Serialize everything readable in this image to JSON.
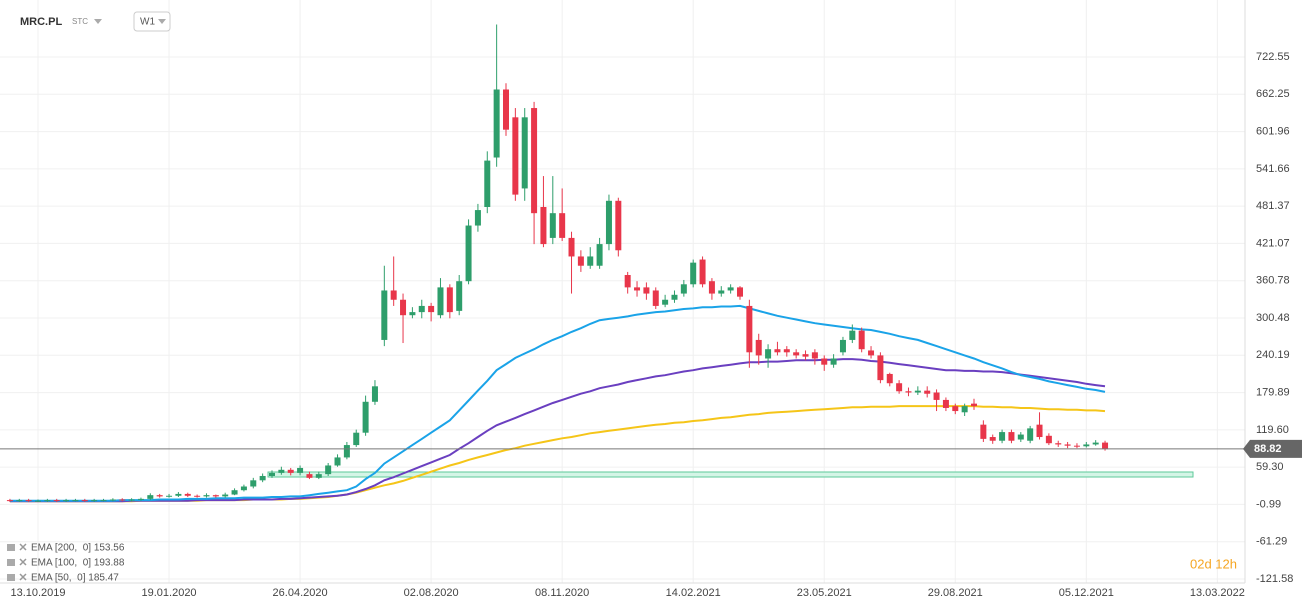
{
  "chart_data": {
    "type": "candlestick",
    "title": "MRC.PL",
    "subtitle": "STC",
    "interval": "W1",
    "countdown": "02d 12h",
    "last_price": 88.82,
    "last_price_label": "88.82",
    "up_color": "#2e9e6b",
    "down_color": "#e8364a",
    "grid": true,
    "ylim": [
      -128.05,
      814.72
    ],
    "yticks": [
      722.55,
      662.25,
      601.96,
      541.66,
      481.37,
      421.07,
      360.78,
      300.48,
      240.19,
      179.89,
      {
        "value": 119.6,
        "label": "119.60"
      },
      {
        "value": 59.3,
        "label": "59.30"
      },
      -0.99,
      -61.29,
      -121.58
    ],
    "categories": [
      null,
      null,
      null,
      "13.10.2019",
      null,
      null,
      null,
      null,
      null,
      null,
      null,
      null,
      null,
      null,
      null,
      null,
      null,
      "19.01.2020",
      null,
      null,
      null,
      null,
      null,
      null,
      null,
      null,
      null,
      null,
      null,
      null,
      null,
      "26.04.2020",
      null,
      null,
      null,
      null,
      null,
      null,
      null,
      null,
      null,
      null,
      null,
      null,
      null,
      "02.08.2020",
      null,
      null,
      null,
      null,
      null,
      null,
      null,
      null,
      null,
      null,
      null,
      null,
      null,
      "08.11.2020",
      null,
      null,
      null,
      null,
      null,
      null,
      null,
      null,
      null,
      null,
      null,
      null,
      null,
      "14.02.2021",
      null,
      null,
      null,
      null,
      null,
      null,
      null,
      null,
      null,
      null,
      null,
      null,
      null,
      "23.05.2021",
      null,
      null,
      null,
      null,
      null,
      null,
      null,
      null,
      null,
      null,
      null,
      null,
      null,
      "29.08.2021",
      null,
      null,
      null,
      null,
      null,
      null,
      null,
      null,
      null,
      null,
      null,
      null,
      null,
      "05.12.2021",
      null,
      null,
      null,
      null,
      null,
      null,
      null,
      null,
      null,
      null,
      null,
      null,
      null,
      "13.03.2022"
    ],
    "open": [
      6,
      5,
      6,
      5,
      5,
      6,
      5,
      6,
      6,
      5,
      6,
      6,
      7,
      6,
      7,
      8,
      14,
      12,
      13,
      16,
      13,
      12,
      14,
      12,
      15,
      22,
      28,
      38,
      45,
      50,
      55,
      50,
      48,
      42,
      48,
      62,
      75,
      95,
      115,
      165,
      265,
      345,
      330,
      305,
      310,
      320,
      305,
      350,
      312,
      360,
      450,
      480,
      560,
      670,
      625,
      510,
      640,
      480,
      430,
      470,
      430,
      400,
      385,
      385,
      420,
      490,
      370,
      350,
      350,
      345,
      322,
      330,
      340,
      355,
      395,
      360,
      340,
      345,
      350,
      320,
      265,
      235,
      250,
      250,
      245,
      242,
      245,
      235,
      225,
      245,
      265,
      280,
      248,
      240,
      210,
      195,
      182,
      180,
      183,
      180,
      168,
      158,
      148,
      162,
      128,
      108,
      102,
      116,
      104,
      102,
      128,
      110,
      98,
      96,
      94,
      93,
      96,
      99,
      null,
      null,
      null,
      null,
      null,
      null,
      null,
      null,
      null,
      null,
      null,
      null
    ],
    "high": [
      8,
      8,
      8,
      7,
      8,
      8,
      8,
      8,
      8,
      8,
      8,
      9,
      9,
      9,
      10,
      17,
      16,
      16,
      19,
      18,
      15,
      17,
      15,
      18,
      25,
      31,
      42,
      49,
      54,
      60,
      58,
      62,
      52,
      52,
      66,
      80,
      100,
      120,
      175,
      200,
      385,
      400,
      340,
      318,
      330,
      325,
      365,
      355,
      370,
      460,
      485,
      570,
      775,
      680,
      640,
      640,
      650,
      530,
      530,
      510,
      440,
      410,
      415,
      430,
      500,
      495,
      375,
      360,
      358,
      350,
      338,
      345,
      362,
      395,
      400,
      365,
      352,
      355,
      352,
      330,
      275,
      258,
      262,
      255,
      250,
      248,
      250,
      240,
      242,
      270,
      290,
      285,
      255,
      245,
      212,
      200,
      188,
      190,
      190,
      185,
      172,
      162,
      162,
      170,
      135,
      112,
      120,
      120,
      116,
      126,
      148,
      114,
      102,
      100,
      98,
      100,
      103,
      102,
      null,
      null,
      null,
      null,
      null,
      null,
      null,
      null,
      null,
      null,
      null,
      null
    ],
    "low": [
      3,
      3,
      3,
      3,
      3,
      3,
      3,
      4,
      3,
      3,
      4,
      4,
      4,
      4,
      5,
      6,
      10,
      10,
      11,
      11,
      10,
      10,
      10,
      10,
      14,
      20,
      25,
      35,
      42,
      47,
      46,
      46,
      40,
      40,
      45,
      60,
      72,
      92,
      110,
      160,
      255,
      320,
      260,
      300,
      300,
      295,
      300,
      300,
      305,
      355,
      440,
      470,
      545,
      595,
      490,
      490,
      420,
      415,
      420,
      425,
      340,
      375,
      380,
      380,
      410,
      400,
      340,
      335,
      330,
      315,
      318,
      325,
      335,
      350,
      350,
      330,
      335,
      340,
      330,
      220,
      225,
      220,
      240,
      238,
      235,
      232,
      225,
      215,
      220,
      240,
      260,
      245,
      235,
      195,
      190,
      178,
      174,
      176,
      172,
      150,
      150,
      145,
      142,
      152,
      100,
      97,
      98,
      98,
      100,
      98,
      104,
      95,
      92,
      90,
      90,
      91,
      94,
      86,
      null,
      null,
      null,
      null,
      null,
      null,
      null,
      null,
      null,
      null,
      null,
      null
    ],
    "close": [
      5,
      6,
      5,
      5,
      6,
      5,
      6,
      6,
      5,
      6,
      6,
      7,
      6,
      7,
      8,
      14,
      12,
      13,
      16,
      13,
      12,
      14,
      12,
      15,
      22,
      28,
      38,
      45,
      50,
      55,
      50,
      58,
      42,
      48,
      62,
      75,
      95,
      115,
      165,
      190,
      345,
      330,
      305,
      310,
      320,
      310,
      350,
      310,
      360,
      450,
      475,
      555,
      670,
      605,
      500,
      625,
      470,
      420,
      470,
      430,
      400,
      385,
      400,
      420,
      490,
      410,
      350,
      345,
      340,
      320,
      330,
      338,
      355,
      390,
      355,
      340,
      345,
      350,
      335,
      245,
      240,
      250,
      245,
      245,
      240,
      238,
      235,
      225,
      235,
      265,
      280,
      250,
      240,
      200,
      195,
      182,
      180,
      183,
      178,
      168,
      155,
      150,
      158,
      158,
      105,
      102,
      116,
      102,
      112,
      122,
      108,
      98,
      96,
      94,
      93,
      96,
      99,
      88.82,
      null,
      null,
      null,
      null,
      null,
      null,
      null,
      null,
      null,
      null,
      null,
      null
    ],
    "series": [
      {
        "name": "EMA [200,  0] 153.56",
        "color": "#f5c518",
        "values": [
          4,
          4,
          4,
          4,
          4,
          4,
          4,
          4,
          4,
          4,
          4,
          4,
          4,
          4,
          5,
          5,
          5,
          5,
          5,
          5,
          5,
          6,
          6,
          6,
          6,
          6,
          7,
          7,
          7,
          7,
          8,
          8,
          9,
          10,
          11,
          13,
          15,
          18,
          22,
          26,
          30,
          33,
          37,
          42,
          47,
          52,
          57,
          62,
          66,
          71,
          75,
          79,
          83,
          87,
          90,
          94,
          97,
          100,
          103,
          106,
          108,
          111,
          114,
          116,
          118,
          120,
          122,
          124,
          126,
          128,
          129,
          131,
          132,
          134,
          135,
          137,
          139,
          140,
          142,
          144,
          145,
          147,
          148,
          149,
          150,
          151,
          152,
          153,
          154,
          155,
          156,
          156,
          157,
          157,
          157,
          158,
          158,
          158,
          158,
          158,
          158,
          158,
          158,
          158,
          157,
          157,
          156,
          156,
          155,
          155,
          154,
          153,
          153,
          152,
          152,
          151,
          151,
          150,
          null,
          null,
          null,
          null,
          null,
          null,
          null,
          null,
          null,
          null,
          null,
          null
        ]
      },
      {
        "name": "EMA [100,  0] 193.88",
        "color": "#6a3fc0",
        "values": [
          4,
          4,
          4,
          4,
          4,
          4,
          4,
          4,
          4,
          4,
          4,
          4,
          4,
          5,
          5,
          5,
          5,
          5,
          5,
          5,
          6,
          6,
          6,
          6,
          6,
          7,
          7,
          7,
          7,
          8,
          8,
          9,
          10,
          11,
          12,
          13,
          15,
          19,
          24,
          30,
          38,
          43,
          49,
          55,
          61,
          67,
          73,
          79,
          89,
          98,
          108,
          118,
          127,
          133,
          139,
          145,
          151,
          157,
          163,
          168,
          173,
          178,
          182,
          187,
          190,
          193,
          197,
          200,
          203,
          206,
          208,
          211,
          214,
          216,
          219,
          221,
          223,
          225,
          227,
          229,
          229,
          230,
          230,
          231,
          232,
          232,
          232,
          233,
          233,
          234,
          234,
          233,
          231,
          230,
          228,
          226,
          224,
          222,
          220,
          218,
          216,
          216,
          215,
          215,
          214,
          214,
          213,
          211,
          209,
          207,
          205,
          203,
          201,
          199,
          197,
          194,
          192,
          190,
          null,
          null,
          null,
          null,
          null,
          null,
          null,
          null,
          null,
          null,
          null,
          null
        ]
      },
      {
        "name": "EMA [50,  0] 185.47",
        "color": "#1aa3e8",
        "values": [
          5,
          5,
          5,
          5,
          5,
          5,
          5,
          5,
          5,
          5,
          5,
          5,
          6,
          6,
          6,
          6,
          7,
          7,
          7,
          8,
          8,
          8,
          9,
          9,
          9,
          10,
          10,
          10,
          11,
          11,
          12,
          12,
          14,
          16,
          18,
          20,
          22,
          28,
          40,
          50,
          65,
          75,
          85,
          95,
          105,
          115,
          125,
          135,
          151,
          167,
          183,
          199,
          216,
          226,
          236,
          243,
          250,
          258,
          265,
          271,
          278,
          284,
          291,
          297,
          299,
          301,
          303,
          306,
          308,
          310,
          311,
          313,
          315,
          316,
          318,
          318,
          319,
          319,
          320,
          316,
          312,
          308,
          304,
          301,
          298,
          295,
          292,
          290,
          288,
          286,
          284,
          282,
          281,
          278,
          275,
          271,
          268,
          265,
          260,
          255,
          250,
          245,
          240,
          235,
          229,
          224,
          219,
          213,
          208,
          205,
          202,
          198,
          195,
          192,
          189,
          186,
          184,
          181,
          null,
          null,
          null,
          null,
          null,
          null,
          null,
          null,
          null,
          null,
          null,
          null
        ]
      }
    ]
  }
}
